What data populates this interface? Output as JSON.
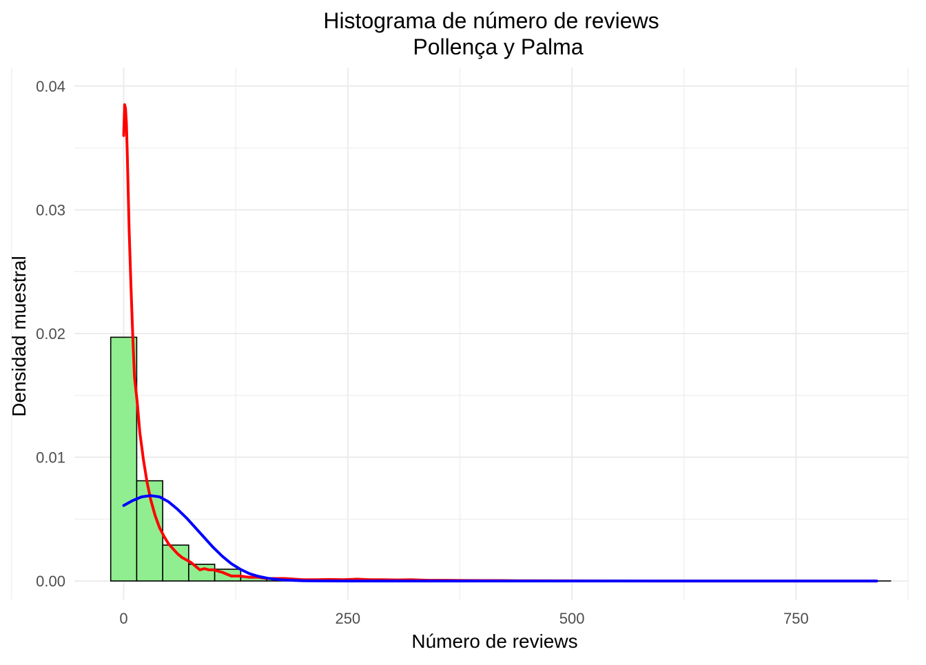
{
  "chart_data": {
    "type": "bar",
    "title": "Histograma de número de reviews",
    "subtitle": "Pollença y Palma",
    "xlabel": "Número de reviews",
    "ylabel": "Densidad muestral",
    "xlim": [
      -55,
      875
    ],
    "ylim": [
      -0.0015,
      0.0415
    ],
    "x_ticks": [
      0,
      250,
      500,
      750
    ],
    "x_tick_labels": [
      "0",
      "250",
      "500",
      "750"
    ],
    "y_ticks": [
      0.0,
      0.01,
      0.02,
      0.03,
      0.04
    ],
    "y_tick_labels": [
      "0.00",
      "0.01",
      "0.02",
      "0.03",
      "0.04"
    ],
    "grid": true,
    "legend": "none",
    "bins": [
      {
        "x0": -14.5,
        "x1": 14.5,
        "density": 0.0197
      },
      {
        "x0": 14.5,
        "x1": 43.5,
        "density": 0.0081
      },
      {
        "x0": 43.5,
        "x1": 72.5,
        "density": 0.0029
      },
      {
        "x0": 72.5,
        "x1": 101.5,
        "density": 0.00135
      },
      {
        "x0": 101.5,
        "x1": 130.5,
        "density": 0.00095
      },
      {
        "x0": 130.5,
        "x1": 159.5,
        "density": 0.0003
      },
      {
        "x0": 159.5,
        "x1": 188.5,
        "density": 0.0002
      },
      {
        "x0": 188.5,
        "x1": 217.5,
        "density": 0.0001
      },
      {
        "x0": 217.5,
        "x1": 246.5,
        "density": 5e-05
      },
      {
        "x0": 246.5,
        "x1": 275.5,
        "density": 4e-05
      },
      {
        "x0": 275.5,
        "x1": 304.5,
        "density": 3e-05
      },
      {
        "x0": 304.5,
        "x1": 333.5,
        "density": 2e-05
      },
      {
        "x0": 333.5,
        "x1": 362.5,
        "density": 2e-05
      },
      {
        "x0": 362.5,
        "x1": 391.5,
        "density": 1e-05
      },
      {
        "x0": 391.5,
        "x1": 420.5,
        "density": 1e-05
      },
      {
        "x0": 420.5,
        "x1": 449.5,
        "density": 0.0
      },
      {
        "x0": 449.5,
        "x1": 478.5,
        "density": 0.0
      },
      {
        "x0": 478.5,
        "x1": 507.5,
        "density": 0.0
      },
      {
        "x0": 507.5,
        "x1": 536.5,
        "density": 0.0
      },
      {
        "x0": 536.5,
        "x1": 565.5,
        "density": 0.0
      },
      {
        "x0": 565.5,
        "x1": 594.5,
        "density": 0.0
      },
      {
        "x0": 594.5,
        "x1": 623.5,
        "density": 0.0
      },
      {
        "x0": 623.5,
        "x1": 652.5,
        "density": 0.0
      },
      {
        "x0": 652.5,
        "x1": 681.5,
        "density": 0.0
      },
      {
        "x0": 681.5,
        "x1": 710.5,
        "density": 0.0
      },
      {
        "x0": 710.5,
        "x1": 739.5,
        "density": 0.0
      },
      {
        "x0": 739.5,
        "x1": 768.5,
        "density": 0.0
      },
      {
        "x0": 768.5,
        "x1": 797.5,
        "density": 0.0
      },
      {
        "x0": 797.5,
        "x1": 826.5,
        "density": 0.0
      },
      {
        "x0": 826.5,
        "x1": 855.5,
        "density": 0.0
      }
    ],
    "series": [
      {
        "type": "line",
        "color": "#ff0000",
        "x": [
          0,
          1,
          2,
          3,
          4,
          5,
          6,
          8,
          10,
          12,
          15,
          18,
          22,
          26,
          30,
          35,
          40,
          45,
          50,
          55,
          60,
          65,
          70,
          75,
          80,
          85,
          90,
          95,
          100,
          110,
          120,
          130,
          140,
          150,
          160,
          170,
          180,
          190,
          200,
          215,
          230,
          245,
          260,
          275,
          290,
          305,
          320,
          340,
          360,
          380,
          400,
          420,
          440,
          500,
          600,
          700,
          800,
          840
        ],
        "values": [
          0.036,
          0.0385,
          0.0382,
          0.037,
          0.0345,
          0.0315,
          0.0285,
          0.024,
          0.02,
          0.0165,
          0.0145,
          0.012,
          0.0098,
          0.008,
          0.0066,
          0.0053,
          0.0043,
          0.0036,
          0.003,
          0.0026,
          0.0022,
          0.0019,
          0.0017,
          0.0015,
          0.0012,
          0.0009,
          0.001,
          0.0009,
          0.0009,
          0.0007,
          0.0004,
          0.0004,
          0.0003,
          0.0003,
          0.0002,
          0.0002,
          0.0002,
          0.00015,
          0.0001,
          0.0001,
          0.00012,
          0.0001,
          0.00015,
          0.0001,
          0.0001,
          8e-05,
          0.0001,
          5e-05,
          5e-05,
          4e-05,
          3e-05,
          3e-05,
          2e-05,
          1e-05,
          0.0,
          0.0,
          0.0,
          0.0
        ]
      },
      {
        "type": "line",
        "color": "#0000ff",
        "x": [
          0,
          10,
          20,
          30,
          40,
          50,
          60,
          70,
          80,
          90,
          100,
          110,
          120,
          130,
          140,
          150,
          160,
          170,
          180,
          200,
          220,
          250,
          300,
          400,
          500,
          600,
          700,
          800,
          840
        ],
        "values": [
          0.0061,
          0.0065,
          0.0068,
          0.0069,
          0.0068,
          0.0064,
          0.0058,
          0.0051,
          0.0043,
          0.0035,
          0.0027,
          0.002,
          0.0014,
          0.00095,
          0.0006,
          0.00038,
          0.00023,
          0.00013,
          7e-05,
          2e-05,
          5e-06,
          0.0,
          0.0,
          0.0,
          0.0,
          0.0,
          0.0,
          0.0,
          0.0
        ]
      }
    ]
  },
  "colors": {
    "bar_fill": "#90ee90",
    "bar_stroke": "#000000",
    "grid": "#ebebeb",
    "background": "#ffffff"
  }
}
